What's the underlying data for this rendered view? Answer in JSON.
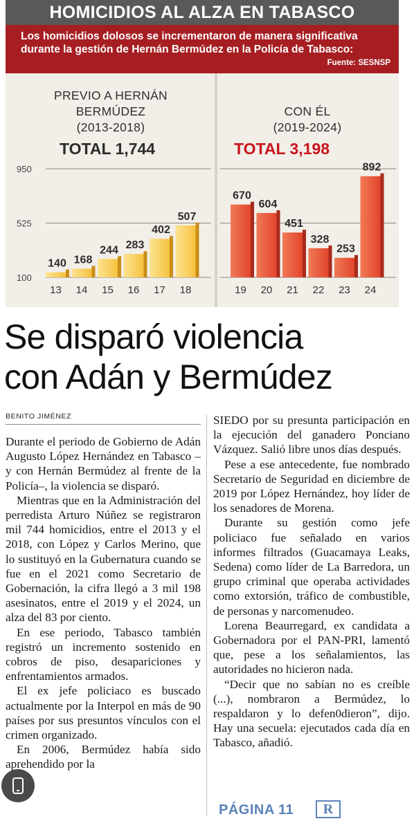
{
  "graphic": {
    "title": "HOMICIDIOS AL ALZA EN TABASCO",
    "subtitle": "Los homicidios dolosos se incrementaron de manera significativa durante la gestión de Hernán Bermúdez en la Policía de Tabasco:",
    "source": "Fuente: SESNSP",
    "left_period_line1": "PREVIO A HERNÁN",
    "left_period_line2": "BERMÚDEZ",
    "left_period_line3": "(2013-2018)",
    "left_total_label": "TOTAL",
    "left_total_value": "1,744",
    "right_period_line1": "CON ÉL",
    "right_period_line2": "(2019-2024)",
    "right_total_label": "TOTAL",
    "right_total_value": "3,198"
  },
  "chart_data": {
    "type": "bar",
    "yticks": [
      100,
      525,
      950
    ],
    "ylim": [
      100,
      950
    ],
    "grid": true,
    "series": [
      {
        "categories": [
          "13",
          "14",
          "15",
          "16",
          "17",
          "18"
        ],
        "values": [
          140,
          168,
          244,
          283,
          402,
          507
        ],
        "color": "#f5c23d"
      },
      {
        "categories": [
          "19",
          "20",
          "21",
          "22",
          "23",
          "24"
        ],
        "values": [
          670,
          604,
          451,
          328,
          253,
          892
        ],
        "color": "#e2452c"
      }
    ]
  },
  "article": {
    "headline_line1": "Se disparó violencia",
    "headline_line2": "con Adán y Bermúdez",
    "byline": "BENITO JIMÉNEZ",
    "left_paragraphs": [
      "Durante el periodo de Gobierno de Adán Augusto López Hernández en Tabasco –y con Hernán Bermúdez al frente de la Policía–, la violencia se disparó.",
      "Mientras que en la Administración del perredista Arturo Núñez se registraron mil 744 homicidios, entre el 2013 y el 2018, con López y Carlos Merino, que lo sustituyó en la Gubernatura cuando se fue en el 2021 como Secretario de Gobernación, la cifra llegó a 3 mil 198 asesinatos, entre el 2019 y el 2024, un alza del 83 por ciento.",
      "En ese periodo, Tabasco también registró un incremento sostenido en cobros de piso, desapariciones y enfrentamientos armados.",
      "El ex jefe policiaco es buscado actualmente por la Interpol en más de 90 países por sus presuntos vínculos con el crimen organizado.",
      "En 2006, Bermúdez había sido aprehendido por la"
    ],
    "right_paragraphs": [
      "SIEDO por su presunta participación en la ejecución del ganadero Ponciano Vázquez. Salió libre unos días después.",
      "Pese a ese antecedente, fue nombrado Secretario de Seguridad en diciembre de 2019 por López Hernández, hoy líder de los senadores de Morena.",
      "Durante su gestión como jefe policiaco fue señalado en varios informes filtrados (Guacamaya Leaks, Sedena) como líder de La Barredora, un grupo criminal que operaba actividades como extorsión, tráfico de combustible, de personas y narcomenudeo.",
      "Lorena Beaurregard, ex candidata a Gobernadora por el PAN-PRI, lamentó que, pese a los señalamientos, las autoridades no hicieron nada.",
      "“Decir que no sabían no es creíble (...), nombraron a Bermúdez, lo respaldaron y lo defen0dieron”, dijo. Hay una secuela: ejecutados cada día en Tabasco, añadió."
    ],
    "page_ref": "PÁGINA 11",
    "logo_letter": "R"
  }
}
